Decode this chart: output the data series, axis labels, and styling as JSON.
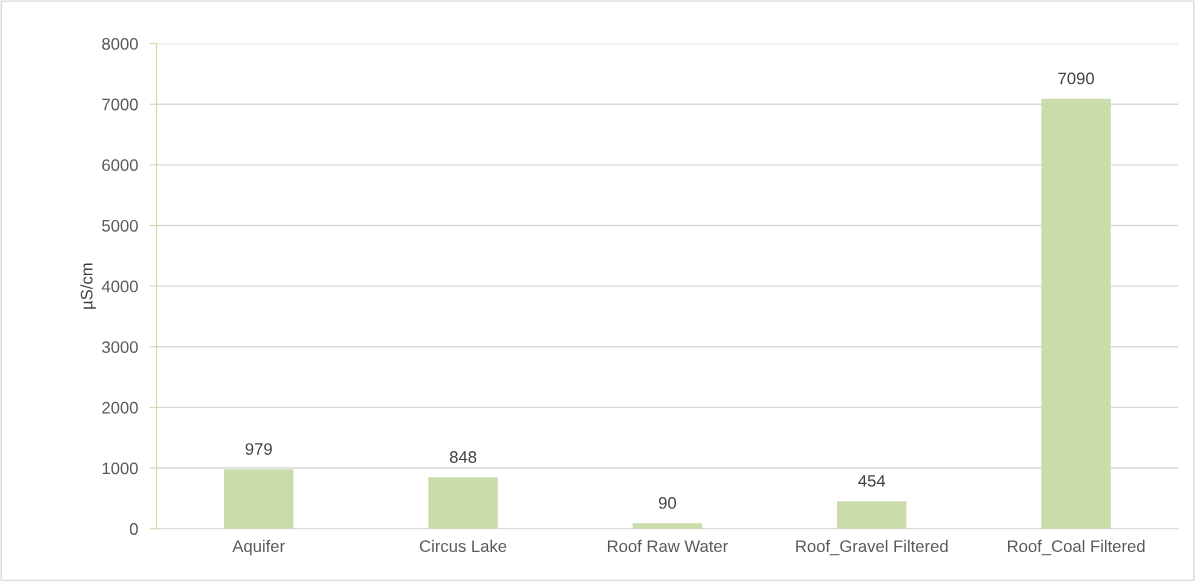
{
  "chart_data": {
    "type": "bar",
    "ylabel": "µS/cm",
    "categories": [
      "Aquifer",
      "Circus Lake",
      "Roof Raw Water",
      "Roof_Gravel Filtered",
      "Roof_Coal Filtered"
    ],
    "values": [
      979,
      848,
      90,
      454,
      7090
    ],
    "color": "#cadca9",
    "ylim": [
      0,
      8000
    ],
    "yticks": [
      0,
      1000,
      2000,
      3000,
      4000,
      5000,
      6000,
      7000,
      8000
    ],
    "grid": "y",
    "data_labels": true
  }
}
